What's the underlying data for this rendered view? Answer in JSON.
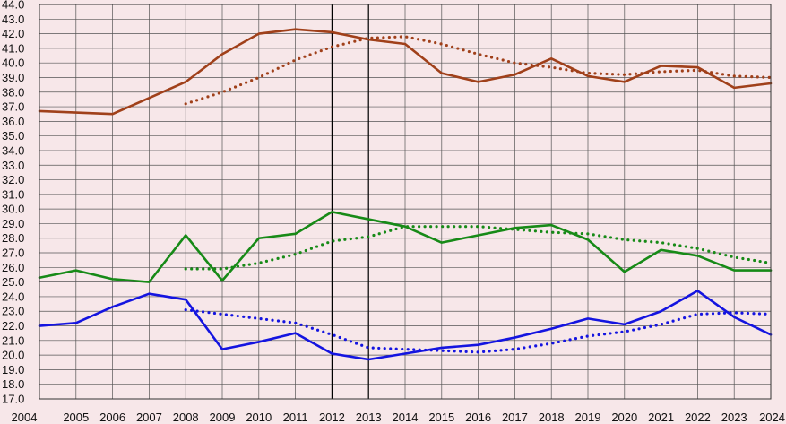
{
  "chart_data": {
    "type": "line",
    "title": "",
    "xlabel": "",
    "ylabel": "",
    "x": [
      "2004",
      "2005",
      "2006",
      "2007",
      "2008",
      "2009",
      "2010",
      "2011",
      "2012",
      "2013",
      "2014",
      "2015",
      "2016",
      "2017",
      "2018",
      "2019",
      "2020",
      "2021",
      "2022",
      "2023",
      "2024"
    ],
    "ylim": [
      17.0,
      44.0
    ],
    "ytick_step": 1.0,
    "y_tick_labels": [
      "17.0",
      "18.0",
      "19.0",
      "20.0",
      "21.0",
      "22.0",
      "23.0",
      "24.0",
      "25.0",
      "26.0",
      "27.0",
      "28.0",
      "29.0",
      "30.0",
      "31.0",
      "32.0",
      "33.0",
      "34.0",
      "35.0",
      "36.0",
      "37.0",
      "38.0",
      "39.0",
      "40.0",
      "41.0",
      "42.0",
      "43.0",
      "44.0"
    ],
    "grid": true,
    "vertical_markers": [
      "2012",
      "2013"
    ],
    "legend": "none",
    "series": [
      {
        "color": "#a0401a",
        "style": "solid",
        "values": [
          36.7,
          36.6,
          36.5,
          37.6,
          38.7,
          40.6,
          42.0,
          42.3,
          42.1,
          41.6,
          41.3,
          39.3,
          38.7,
          39.2,
          40.3,
          39.1,
          38.7,
          39.8,
          39.7,
          38.3,
          38.6
        ]
      },
      {
        "color": "#a0401a",
        "style": "dotted",
        "values": [
          null,
          null,
          null,
          null,
          37.2,
          38.0,
          39.0,
          40.2,
          41.1,
          41.7,
          41.8,
          41.3,
          40.6,
          40.0,
          39.7,
          39.3,
          39.2,
          39.4,
          39.5,
          39.1,
          39.0
        ]
      },
      {
        "color": "#178a17",
        "style": "solid",
        "values": [
          25.3,
          25.8,
          25.2,
          25.0,
          28.2,
          25.1,
          28.0,
          28.3,
          29.8,
          29.3,
          28.8,
          27.7,
          28.2,
          28.7,
          28.9,
          27.9,
          25.7,
          27.2,
          26.8,
          25.8,
          25.8
        ]
      },
      {
        "color": "#178a17",
        "style": "dotted",
        "values": [
          null,
          null,
          null,
          null,
          25.9,
          25.9,
          26.3,
          26.9,
          27.8,
          28.1,
          28.8,
          28.8,
          28.8,
          28.6,
          28.4,
          28.3,
          27.9,
          27.7,
          27.3,
          26.7,
          26.3
        ]
      },
      {
        "color": "#1414e0",
        "style": "solid",
        "values": [
          22.0,
          22.2,
          23.3,
          24.2,
          23.8,
          20.4,
          20.9,
          21.5,
          20.1,
          19.7,
          20.1,
          20.5,
          20.7,
          21.2,
          21.8,
          22.5,
          22.1,
          23.0,
          24.4,
          22.6,
          21.4
        ]
      },
      {
        "color": "#1414e0",
        "style": "dotted",
        "values": [
          null,
          null,
          null,
          null,
          23.1,
          22.8,
          22.5,
          22.2,
          21.4,
          20.5,
          20.4,
          20.3,
          20.2,
          20.4,
          20.8,
          21.3,
          21.6,
          22.1,
          22.8,
          22.9,
          22.8
        ]
      }
    ]
  }
}
